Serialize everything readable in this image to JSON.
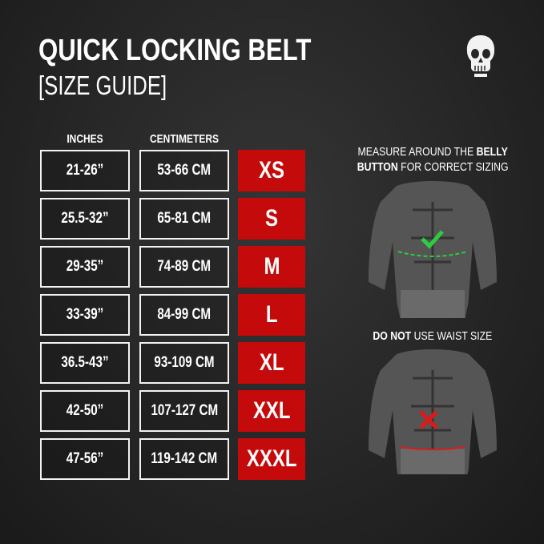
{
  "header": {
    "title": "QUICK LOCKING BELT",
    "subtitle": "[SIZE GUIDE]"
  },
  "columns": {
    "inches": "INCHES",
    "centimeters": "CENTIMETERS"
  },
  "rows": [
    {
      "inches": "21-26”",
      "cm": "53-66 CM",
      "size": "XS"
    },
    {
      "inches": "25.5-32”",
      "cm": "65-81 CM",
      "size": "S"
    },
    {
      "inches": "29-35”",
      "cm": "74-89 CM",
      "size": "M"
    },
    {
      "inches": "33-39”",
      "cm": "84-99 CM",
      "size": "L"
    },
    {
      "inches": "36.5-43”",
      "cm": "93-109 CM",
      "size": "XL"
    },
    {
      "inches": "42-50”",
      "cm": "107-127 CM",
      "size": "XXL"
    },
    {
      "inches": "47-56”",
      "cm": "119-142 CM",
      "size": "XXXL"
    }
  ],
  "instructions": {
    "measure_a": "MEASURE AROUND THE ",
    "measure_b": "BELLY",
    "measure_c": "BUTTON",
    "measure_d": " FOR CORRECT SIZING",
    "waist_a": "DO NOT",
    "waist_b": " USE WAIST SIZE"
  },
  "colors": {
    "size_bg": "#c40a0a",
    "check": "#2ecc40",
    "cross": "#d81b1b"
  },
  "icons": [
    "skull-logo-icon",
    "check-icon",
    "cross-icon"
  ]
}
